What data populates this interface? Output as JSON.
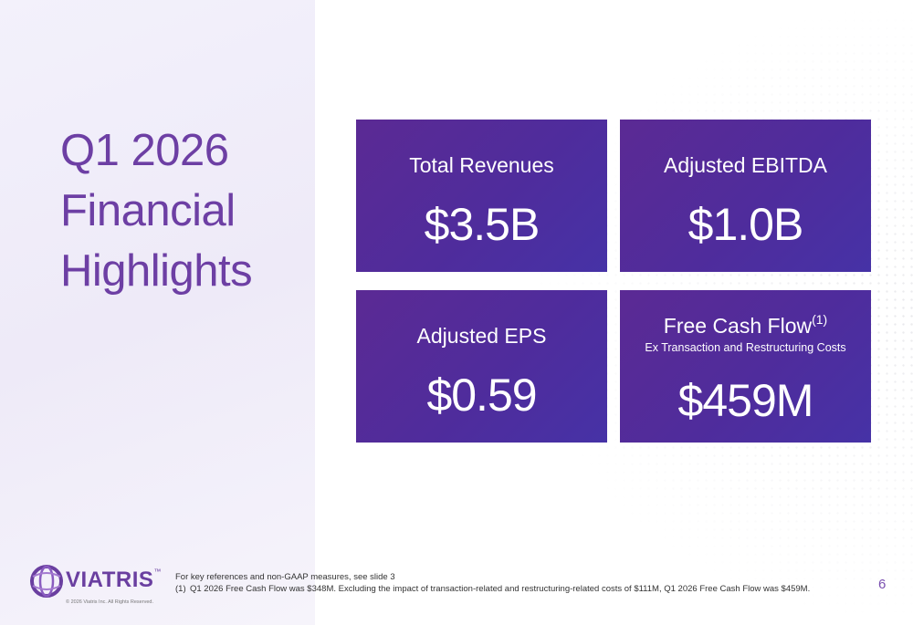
{
  "title": {
    "lines": [
      "Q1 2026",
      "Financial",
      "Highlights"
    ]
  },
  "cards": [
    {
      "label": "Total Revenues",
      "value": "$3.5B"
    },
    {
      "label": "Adjusted EBITDA",
      "value": "$1.0B"
    },
    {
      "label": "Adjusted EPS",
      "value": "$0.59"
    },
    {
      "label": "Free Cash Flow",
      "superscript": "(1)",
      "sublabel": "Ex Transaction and Restructuring Costs",
      "value": "$459M"
    }
  ],
  "footer": {
    "logo": "VIATRIS",
    "trademark": "™",
    "copyright": "© 2026 Viatris Inc. All Rights Reserved.",
    "reference": "For key references and non-GAAP measures, see slide 3",
    "footnote_marker": "(1)",
    "footnote": "Q1 2026 Free Cash Flow was $348M. Excluding the impact of transaction-related and restructuring-related costs of $111M, Q1 2026 Free Cash Flow was $459M.",
    "page_number": "6"
  }
}
